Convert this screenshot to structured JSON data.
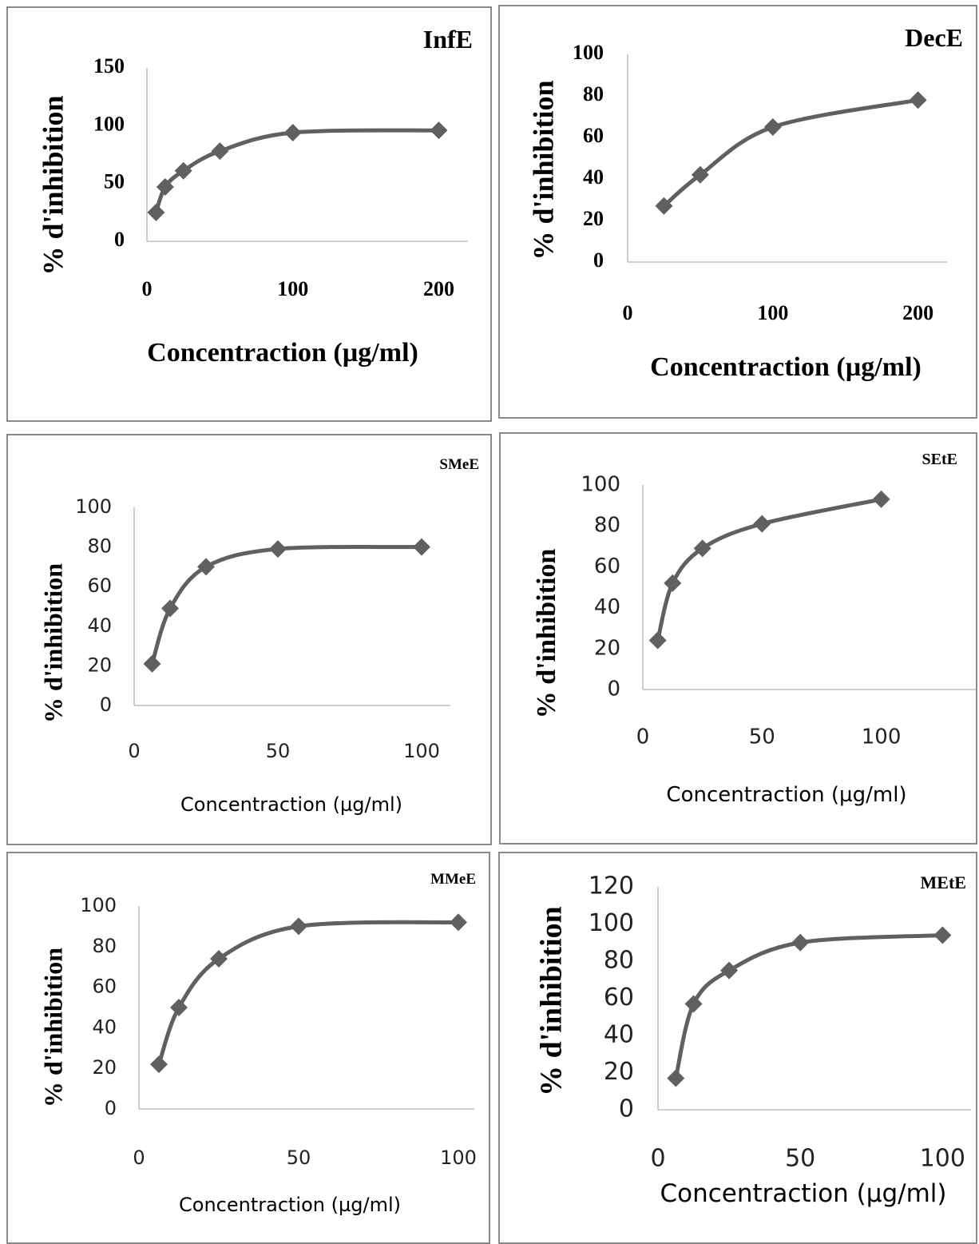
{
  "chart_data": [
    {
      "type": "line",
      "title": "InfE",
      "xlabel": "Concentraction (µg/ml)",
      "ylabel": "% d'inhibition",
      "xlim": [
        0,
        220
      ],
      "ylim": [
        0,
        150
      ],
      "xticks": [
        0,
        100,
        200
      ],
      "yticks": [
        0,
        50,
        100,
        150
      ],
      "grid": false,
      "series": [
        {
          "x": [
            6.25,
            12.5,
            25,
            50,
            100,
            200
          ],
          "y": [
            25,
            47,
            61,
            78,
            94,
            96
          ]
        }
      ]
    },
    {
      "type": "line",
      "title": "DecE",
      "xlabel": "Concentraction (µg/ml)",
      "ylabel": "% d'inhibition",
      "xlim": [
        0,
        220
      ],
      "ylim": [
        0,
        100
      ],
      "xticks": [
        0,
        100,
        200
      ],
      "yticks": [
        0,
        20,
        40,
        60,
        80,
        100
      ],
      "grid": false,
      "series": [
        {
          "x": [
            25,
            50,
            100,
            200
          ],
          "y": [
            27,
            42,
            65,
            78
          ]
        }
      ]
    },
    {
      "type": "line",
      "title": "SMeE",
      "xlabel": "Concentraction (µg/ml)",
      "ylabel": "% d'inhibition",
      "xlim": [
        0,
        110
      ],
      "ylim": [
        0,
        100
      ],
      "xticks": [
        0,
        50,
        100
      ],
      "yticks": [
        0,
        20,
        40,
        60,
        80,
        100
      ],
      "grid": false,
      "series": [
        {
          "x": [
            6.25,
            12.5,
            25,
            50,
            100
          ],
          "y": [
            21,
            49,
            70,
            79,
            80
          ]
        }
      ]
    },
    {
      "type": "line",
      "title": "SEtE",
      "xlabel": "Concentraction (µg/ml)",
      "ylabel": "% d'inhibition",
      "xlim": [
        0,
        140
      ],
      "ylim": [
        0,
        100
      ],
      "xticks": [
        0,
        50,
        100
      ],
      "yticks": [
        0,
        20,
        40,
        60,
        80,
        100
      ],
      "grid": false,
      "series": [
        {
          "x": [
            6.25,
            12.5,
            25,
            50,
            100
          ],
          "y": [
            24,
            52,
            69,
            81,
            93
          ]
        }
      ]
    },
    {
      "type": "line",
      "title": "MMeE",
      "xlabel": "Concentraction (µg/ml)",
      "ylabel": "% d'inhibition",
      "xlim": [
        0,
        105
      ],
      "ylim": [
        0,
        100
      ],
      "xticks": [
        0,
        50,
        100
      ],
      "yticks": [
        0,
        20,
        40,
        60,
        80,
        100
      ],
      "grid": false,
      "series": [
        {
          "x": [
            6.25,
            12.5,
            25,
            50,
            100
          ],
          "y": [
            22,
            50,
            74,
            90,
            92
          ]
        }
      ]
    },
    {
      "type": "line",
      "title": "MEtE",
      "xlabel": "Concentraction (µg/ml)",
      "ylabel": "% d'inhibition",
      "xlim": [
        0,
        110
      ],
      "ylim": [
        0,
        120
      ],
      "xticks": [
        0,
        50,
        100
      ],
      "yticks": [
        0,
        20,
        40,
        60,
        80,
        100,
        120
      ],
      "grid": false,
      "series": [
        {
          "x": [
            6.25,
            12.5,
            25,
            50,
            100
          ],
          "y": [
            17,
            57,
            75,
            90,
            94
          ]
        }
      ]
    }
  ]
}
